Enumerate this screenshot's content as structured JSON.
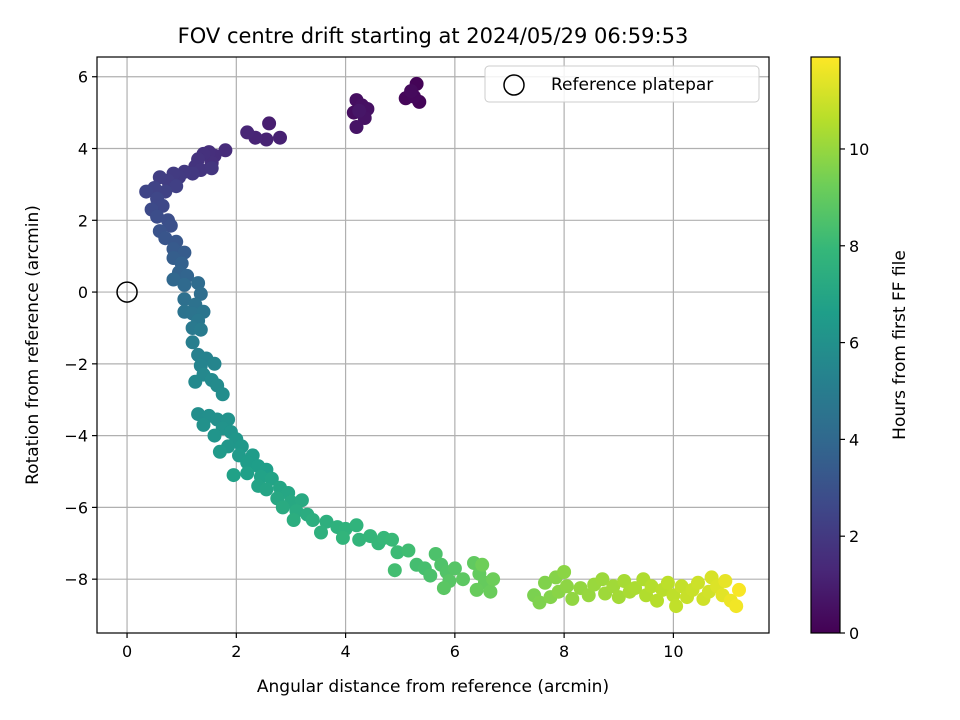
{
  "chart_data": {
    "type": "scatter",
    "title": "FOV centre drift starting at 2024/05/29 06:59:53",
    "xlabel": "Angular distance from reference (arcmin)",
    "ylabel": "Rotation from reference (arcmin)",
    "xlim": [
      -0.55,
      11.75
    ],
    "ylim": [
      -9.5,
      6.55
    ],
    "xticks": [
      0,
      2,
      4,
      6,
      8,
      10
    ],
    "yticks": [
      -8,
      -6,
      -4,
      -2,
      0,
      2,
      4,
      6
    ],
    "grid": true,
    "legend": {
      "position": "top-right",
      "entries": [
        "Reference platepar"
      ]
    },
    "reference_point": {
      "x": 0,
      "y": 0,
      "label": "Reference platepar"
    },
    "colorbar": {
      "label": "Hours from first FF file",
      "range": [
        0,
        11.9
      ],
      "ticks": [
        0,
        2,
        4,
        6,
        8,
        10
      ],
      "colormap": "viridis"
    },
    "colormap_stops": [
      "#440154",
      "#482878",
      "#3e4989",
      "#31688e",
      "#26828e",
      "#1f9e89",
      "#35b779",
      "#6ece58",
      "#b5de2b",
      "#fde725"
    ],
    "series": [
      {
        "points": [
          [
            5.3,
            5.8,
            0.1
          ],
          [
            5.35,
            5.3,
            0.15
          ],
          [
            5.1,
            5.4,
            0.2
          ],
          [
            5.25,
            5.45,
            0.25
          ],
          [
            5.2,
            5.6,
            0.3
          ],
          [
            4.15,
            5.0,
            0.4
          ],
          [
            4.2,
            5.35,
            0.45
          ],
          [
            4.3,
            5.2,
            0.5
          ],
          [
            4.4,
            5.1,
            0.55
          ],
          [
            4.35,
            4.85,
            0.6
          ],
          [
            4.2,
            4.6,
            0.65
          ],
          [
            4.25,
            5.05,
            0.7
          ],
          [
            2.6,
            4.7,
            1.0
          ],
          [
            2.8,
            4.3,
            1.1
          ],
          [
            2.55,
            4.25,
            1.15
          ],
          [
            2.35,
            4.3,
            1.2
          ],
          [
            2.2,
            4.45,
            1.25
          ],
          [
            1.8,
            3.95,
            1.5
          ],
          [
            1.6,
            3.8,
            1.55
          ],
          [
            1.5,
            3.9,
            1.6
          ],
          [
            1.55,
            3.6,
            1.65
          ],
          [
            1.4,
            3.85,
            1.7
          ],
          [
            1.3,
            3.7,
            1.75
          ],
          [
            1.25,
            3.5,
            1.8
          ],
          [
            1.35,
            3.4,
            1.85
          ],
          [
            1.55,
            3.45,
            1.9
          ],
          [
            1.2,
            3.3,
            1.95
          ],
          [
            1.05,
            3.35,
            2.0
          ],
          [
            0.95,
            3.2,
            2.05
          ],
          [
            0.85,
            3.3,
            2.1
          ],
          [
            0.75,
            3.1,
            2.15
          ],
          [
            0.6,
            3.2,
            2.2
          ],
          [
            0.9,
            2.95,
            2.3
          ],
          [
            0.7,
            2.8,
            2.35
          ],
          [
            0.5,
            2.9,
            2.4
          ],
          [
            0.35,
            2.8,
            2.5
          ],
          [
            0.55,
            2.6,
            2.55
          ],
          [
            0.65,
            2.4,
            2.6
          ],
          [
            0.45,
            2.3,
            2.7
          ],
          [
            0.55,
            2.1,
            2.8
          ],
          [
            0.75,
            2.0,
            2.85
          ],
          [
            0.8,
            1.85,
            2.95
          ],
          [
            0.6,
            1.7,
            3.05
          ],
          [
            0.7,
            1.5,
            3.15
          ],
          [
            0.9,
            1.4,
            3.25
          ],
          [
            0.85,
            1.2,
            3.35
          ],
          [
            1.05,
            1.1,
            3.45
          ],
          [
            0.85,
            0.95,
            3.55
          ],
          [
            1.0,
            0.8,
            3.65
          ],
          [
            0.95,
            0.55,
            3.75
          ],
          [
            1.1,
            0.45,
            3.85
          ],
          [
            0.85,
            0.35,
            3.95
          ],
          [
            1.05,
            0.2,
            4.05
          ],
          [
            1.3,
            0.25,
            4.15
          ],
          [
            1.35,
            -0.05,
            4.25
          ],
          [
            1.05,
            -0.2,
            4.35
          ],
          [
            1.25,
            -0.35,
            4.45
          ],
          [
            1.05,
            -0.55,
            4.55
          ],
          [
            1.2,
            -0.6,
            4.6
          ],
          [
            1.4,
            -0.55,
            4.65
          ],
          [
            1.3,
            -0.8,
            4.75
          ],
          [
            1.2,
            -1.0,
            4.85
          ],
          [
            1.35,
            -1.05,
            4.95
          ],
          [
            1.2,
            -1.4,
            5.1
          ],
          [
            1.3,
            -1.75,
            5.2
          ],
          [
            1.45,
            -1.85,
            5.3
          ],
          [
            1.35,
            -2.05,
            5.4
          ],
          [
            1.6,
            -2.0,
            5.45
          ],
          [
            1.4,
            -2.3,
            5.55
          ],
          [
            1.25,
            -2.5,
            5.6
          ],
          [
            1.55,
            -2.45,
            5.65
          ],
          [
            1.65,
            -2.6,
            5.7
          ],
          [
            1.75,
            -2.85,
            5.8
          ],
          [
            1.3,
            -3.4,
            5.85
          ],
          [
            1.5,
            -3.45,
            5.9
          ],
          [
            1.65,
            -3.55,
            5.95
          ],
          [
            1.4,
            -3.7,
            6.0
          ],
          [
            1.85,
            -3.55,
            6.05
          ],
          [
            1.75,
            -3.8,
            6.1
          ],
          [
            1.9,
            -3.9,
            6.15
          ],
          [
            1.6,
            -4.0,
            6.2
          ],
          [
            2.0,
            -4.1,
            6.25
          ],
          [
            1.85,
            -4.3,
            6.3
          ],
          [
            2.1,
            -4.3,
            6.35
          ],
          [
            1.7,
            -4.45,
            6.4
          ],
          [
            2.05,
            -4.55,
            6.45
          ],
          [
            2.3,
            -4.55,
            6.5
          ],
          [
            2.2,
            -4.75,
            6.55
          ],
          [
            2.4,
            -4.85,
            6.6
          ],
          [
            2.55,
            -4.95,
            6.65
          ],
          [
            2.2,
            -5.05,
            6.7
          ],
          [
            1.95,
            -5.1,
            6.75
          ],
          [
            2.45,
            -5.15,
            6.8
          ],
          [
            2.65,
            -5.2,
            6.85
          ],
          [
            2.4,
            -5.4,
            6.9
          ],
          [
            2.55,
            -5.5,
            6.95
          ],
          [
            2.8,
            -5.45,
            7.0
          ],
          [
            2.95,
            -5.6,
            7.05
          ],
          [
            2.75,
            -5.75,
            7.1
          ],
          [
            3.0,
            -5.85,
            7.15
          ],
          [
            3.2,
            -5.8,
            7.2
          ],
          [
            2.85,
            -6.0,
            7.25
          ],
          [
            3.1,
            -6.1,
            7.3
          ],
          [
            3.3,
            -6.2,
            7.35
          ],
          [
            3.05,
            -6.35,
            7.4
          ],
          [
            3.4,
            -6.35,
            7.45
          ],
          [
            3.65,
            -6.4,
            7.5
          ],
          [
            3.55,
            -6.7,
            7.55
          ],
          [
            3.85,
            -6.55,
            7.6
          ],
          [
            4.0,
            -6.6,
            7.65
          ],
          [
            4.2,
            -6.5,
            7.7
          ],
          [
            3.95,
            -6.85,
            7.75
          ],
          [
            4.25,
            -6.9,
            7.8
          ],
          [
            4.45,
            -6.8,
            7.85
          ],
          [
            4.6,
            -7.0,
            7.9
          ],
          [
            4.7,
            -6.85,
            7.95
          ],
          [
            4.85,
            -6.9,
            8.0
          ],
          [
            4.95,
            -7.25,
            8.1
          ],
          [
            5.15,
            -7.2,
            8.2
          ],
          [
            4.9,
            -7.75,
            8.25
          ],
          [
            5.3,
            -7.6,
            8.3
          ],
          [
            5.45,
            -7.7,
            8.35
          ],
          [
            5.55,
            -7.9,
            8.45
          ],
          [
            5.65,
            -7.3,
            8.5
          ],
          [
            5.75,
            -7.6,
            8.55
          ],
          [
            5.85,
            -7.8,
            8.6
          ],
          [
            6.0,
            -7.7,
            8.7
          ],
          [
            5.9,
            -8.05,
            8.75
          ],
          [
            5.8,
            -8.25,
            8.8
          ],
          [
            6.15,
            -8.0,
            8.85
          ],
          [
            6.35,
            -7.55,
            8.95
          ],
          [
            6.45,
            -7.85,
            9.0
          ],
          [
            6.55,
            -8.1,
            9.05
          ],
          [
            6.4,
            -8.3,
            9.1
          ],
          [
            6.65,
            -8.35,
            9.15
          ],
          [
            6.7,
            -8.0,
            9.2
          ],
          [
            6.5,
            -7.6,
            9.25
          ],
          [
            7.45,
            -8.45,
            9.5
          ],
          [
            7.55,
            -8.65,
            9.55
          ],
          [
            7.65,
            -8.1,
            9.6
          ],
          [
            7.75,
            -8.5,
            9.65
          ],
          [
            7.85,
            -7.95,
            9.7
          ],
          [
            7.9,
            -8.35,
            9.75
          ],
          [
            8.0,
            -7.8,
            9.8
          ],
          [
            8.05,
            -8.2,
            9.85
          ],
          [
            8.15,
            -8.55,
            9.9
          ],
          [
            8.3,
            -8.25,
            9.95
          ],
          [
            8.45,
            -8.45,
            10.0
          ],
          [
            8.55,
            -8.15,
            10.05
          ],
          [
            8.7,
            -8.0,
            10.1
          ],
          [
            8.75,
            -8.4,
            10.15
          ],
          [
            8.9,
            -8.2,
            10.2
          ],
          [
            9.0,
            -8.5,
            10.25
          ],
          [
            9.1,
            -8.05,
            10.3
          ],
          [
            9.2,
            -8.35,
            10.35
          ],
          [
            9.3,
            -8.25,
            10.4
          ],
          [
            9.45,
            -8.0,
            10.45
          ],
          [
            9.5,
            -8.45,
            10.5
          ],
          [
            9.6,
            -8.2,
            10.55
          ],
          [
            9.7,
            -8.6,
            10.6
          ],
          [
            9.8,
            -8.3,
            10.65
          ],
          [
            9.9,
            -8.1,
            10.7
          ],
          [
            10.0,
            -8.45,
            10.75
          ],
          [
            10.05,
            -8.75,
            10.8
          ],
          [
            10.15,
            -8.2,
            10.85
          ],
          [
            10.25,
            -8.5,
            10.9
          ],
          [
            10.35,
            -8.3,
            10.95
          ],
          [
            10.45,
            -8.1,
            11.0
          ],
          [
            10.55,
            -8.55,
            11.05
          ],
          [
            10.65,
            -8.35,
            11.1
          ],
          [
            10.7,
            -7.95,
            11.2
          ],
          [
            10.8,
            -8.2,
            11.3
          ],
          [
            10.9,
            -8.45,
            11.4
          ],
          [
            10.95,
            -8.05,
            11.5
          ],
          [
            11.05,
            -8.6,
            11.6
          ],
          [
            11.15,
            -8.75,
            11.7
          ],
          [
            11.2,
            -8.3,
            11.8
          ]
        ]
      }
    ]
  }
}
